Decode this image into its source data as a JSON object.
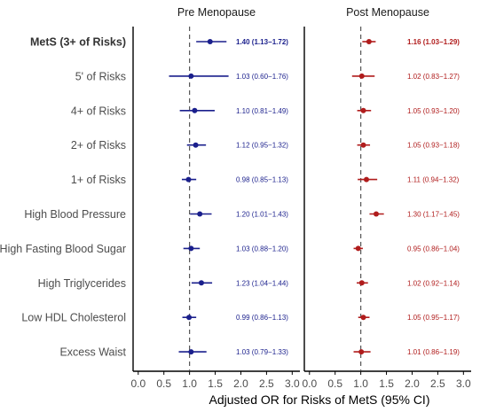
{
  "chart_data": {
    "type": "forest",
    "xlabel": "Adjusted OR for Risks of MetS (95% CI)",
    "xticks": [
      "0.0",
      "0.5",
      "1.0",
      "1.5",
      "2.0",
      "2.5",
      "3.0"
    ],
    "xlim": [
      -0.1,
      3.15
    ],
    "reference_line": 1.0,
    "rows": [
      {
        "label": "MetS (3+ of Risks)",
        "bold": true
      },
      {
        "label": "5' of Risks",
        "bold": false
      },
      {
        "label": "4+ of Risks",
        "bold": false
      },
      {
        "label": "2+ of Risks",
        "bold": false
      },
      {
        "label": "1+ of Risks",
        "bold": false
      },
      {
        "label": "High Blood Pressure",
        "bold": false
      },
      {
        "label": "High Fasting Blood Sugar",
        "bold": false
      },
      {
        "label": "High Triglycerides",
        "bold": false
      },
      {
        "label": "Low HDL Cholesterol",
        "bold": false
      },
      {
        "label": "Excess Waist",
        "bold": false
      }
    ],
    "panels": [
      {
        "title": "Pre Menopause",
        "color": "#1a1f8c",
        "points": [
          {
            "or": 1.4,
            "lo": 1.13,
            "hi": 1.72,
            "text": "1.40 (1.13−1.72)",
            "bold": true
          },
          {
            "or": 1.03,
            "lo": 0.6,
            "hi": 1.76,
            "text": "1.03 (0.60−1.76)",
            "bold": false
          },
          {
            "or": 1.1,
            "lo": 0.81,
            "hi": 1.49,
            "text": "1.10 (0.81−1.49)",
            "bold": false
          },
          {
            "or": 1.12,
            "lo": 0.95,
            "hi": 1.32,
            "text": "1.12 (0.95−1.32)",
            "bold": false
          },
          {
            "or": 0.98,
            "lo": 0.85,
            "hi": 1.13,
            "text": "0.98 (0.85−1.13)",
            "bold": false
          },
          {
            "or": 1.2,
            "lo": 1.01,
            "hi": 1.43,
            "text": "1.20 (1.01−1.43)",
            "bold": false
          },
          {
            "or": 1.03,
            "lo": 0.88,
            "hi": 1.2,
            "text": "1.03 (0.88−1.20)",
            "bold": false
          },
          {
            "or": 1.23,
            "lo": 1.04,
            "hi": 1.44,
            "text": "1.23 (1.04−1.44)",
            "bold": false
          },
          {
            "or": 0.99,
            "lo": 0.86,
            "hi": 1.13,
            "text": "0.99 (0.86−1.13)",
            "bold": false
          },
          {
            "or": 1.03,
            "lo": 0.79,
            "hi": 1.33,
            "text": "1.03 (0.79−1.33)",
            "bold": false
          }
        ]
      },
      {
        "title": "Post Menopause",
        "color": "#b01c1c",
        "points": [
          {
            "or": 1.16,
            "lo": 1.03,
            "hi": 1.29,
            "text": "1.16 (1.03−1.29)",
            "bold": true
          },
          {
            "or": 1.02,
            "lo": 0.83,
            "hi": 1.27,
            "text": "1.02 (0.83−1.27)",
            "bold": false
          },
          {
            "or": 1.05,
            "lo": 0.93,
            "hi": 1.2,
            "text": "1.05 (0.93−1.20)",
            "bold": false
          },
          {
            "or": 1.05,
            "lo": 0.93,
            "hi": 1.18,
            "text": "1.05 (0.93−1.18)",
            "bold": false
          },
          {
            "or": 1.11,
            "lo": 0.94,
            "hi": 1.32,
            "text": "1.11 (0.94−1.32)",
            "bold": false
          },
          {
            "or": 1.3,
            "lo": 1.17,
            "hi": 1.45,
            "text": "1.30 (1.17−1.45)",
            "bold": false
          },
          {
            "or": 0.95,
            "lo": 0.86,
            "hi": 1.04,
            "text": "0.95 (0.86−1.04)",
            "bold": false
          },
          {
            "or": 1.02,
            "lo": 0.92,
            "hi": 1.14,
            "text": "1.02 (0.92−1.14)",
            "bold": false
          },
          {
            "or": 1.05,
            "lo": 0.95,
            "hi": 1.17,
            "text": "1.05 (0.95−1.17)",
            "bold": false
          },
          {
            "or": 1.01,
            "lo": 0.86,
            "hi": 1.19,
            "text": "1.01 (0.86−1.19)",
            "bold": false
          }
        ]
      }
    ]
  }
}
